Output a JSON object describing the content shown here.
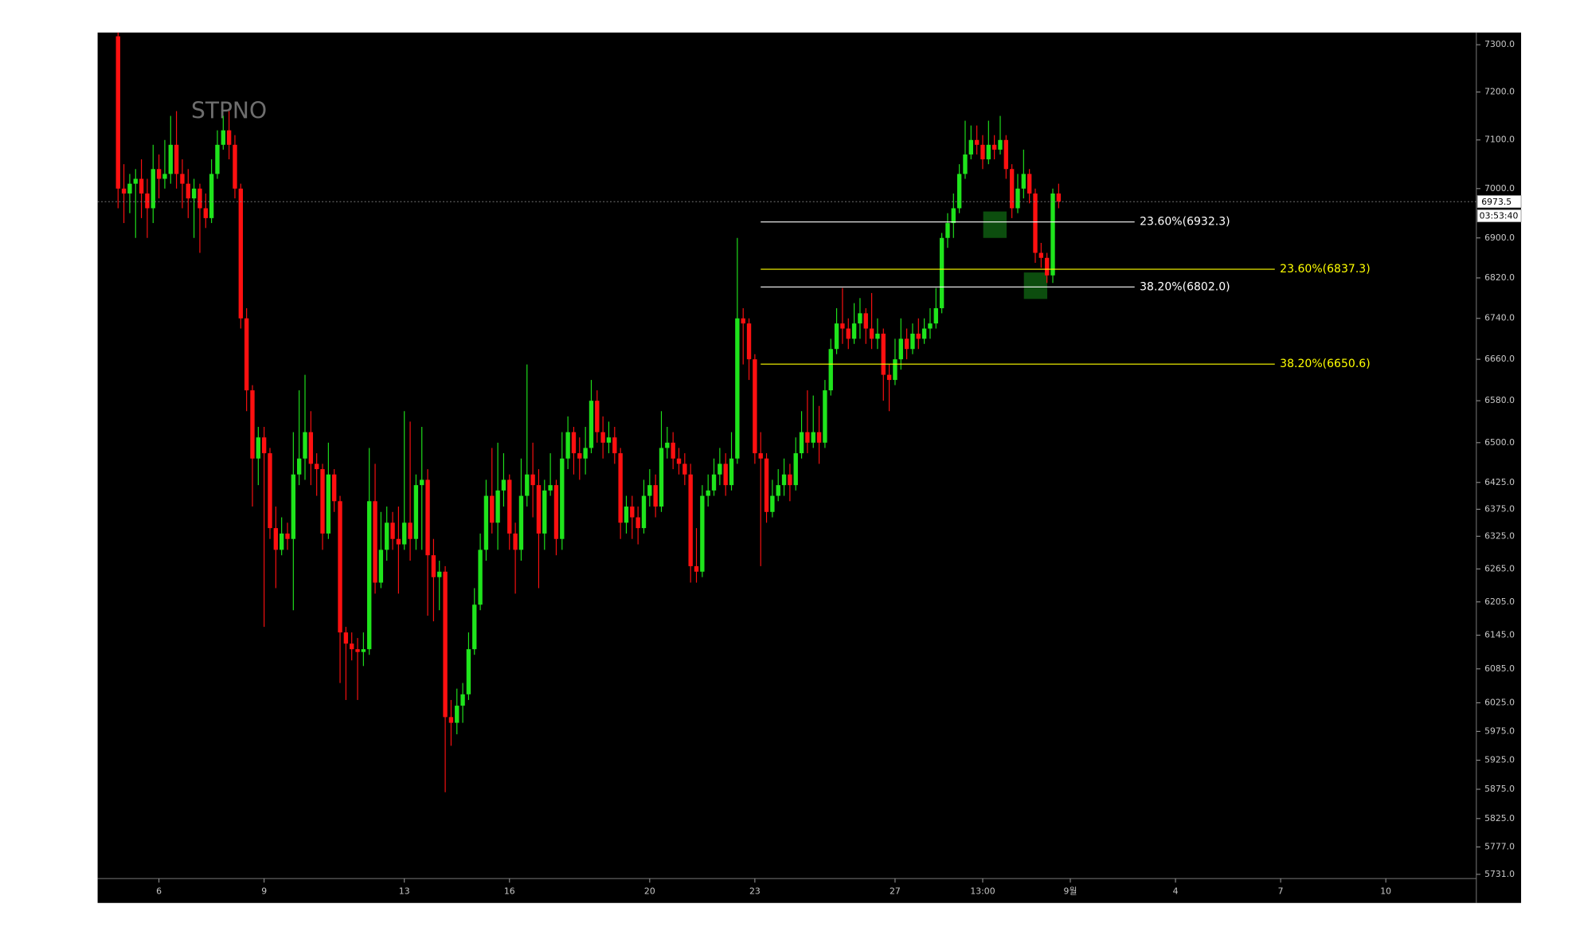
{
  "chart_data": {
    "type": "candlestick",
    "title": "STPNO",
    "log_scale": true,
    "ylim": [
      5724,
      7326
    ],
    "yticks": [
      {
        "value": 7300,
        "label": "7300.0"
      },
      {
        "value": 7200,
        "label": "7200.0"
      },
      {
        "value": 7100,
        "label": "7100.0"
      },
      {
        "value": 7000,
        "label": "7000.0"
      },
      {
        "value": 6900,
        "label": "6900.0"
      },
      {
        "value": 6820,
        "label": "6820.0"
      },
      {
        "value": 6740,
        "label": "6740.0"
      },
      {
        "value": 6660,
        "label": "6660.0"
      },
      {
        "value": 6580,
        "label": "6580.0"
      },
      {
        "value": 6500,
        "label": "6500.0"
      },
      {
        "value": 6425,
        "label": "6425.0"
      },
      {
        "value": 6375,
        "label": "6375.0"
      },
      {
        "value": 6325,
        "label": "6325.0"
      },
      {
        "value": 6265,
        "label": "6265.0"
      },
      {
        "value": 6205,
        "label": "6205.0"
      },
      {
        "value": 6145,
        "label": "6145.0"
      },
      {
        "value": 6085,
        "label": "6085.0"
      },
      {
        "value": 6025,
        "label": "6025.0"
      },
      {
        "value": 5975,
        "label": "5975.0"
      },
      {
        "value": 5925,
        "label": "5925.0"
      },
      {
        "value": 5875,
        "label": "5875.0"
      },
      {
        "value": 5825,
        "label": "5825.0"
      },
      {
        "value": 5777,
        "label": "5777.0"
      },
      {
        "value": 5731,
        "label": "5731.0"
      }
    ],
    "xlim": [
      -3.5,
      232.5
    ],
    "xticks": [
      {
        "value": 7,
        "label": "6"
      },
      {
        "value": 25,
        "label": "9"
      },
      {
        "value": 49,
        "label": "13"
      },
      {
        "value": 67,
        "label": "16"
      },
      {
        "value": 91,
        "label": "20"
      },
      {
        "value": 109,
        "label": "23"
      },
      {
        "value": 133,
        "label": "27"
      },
      {
        "value": 148,
        "label": "13:00"
      },
      {
        "value": 163,
        "label": "9월"
      },
      {
        "value": 181,
        "label": "4"
      },
      {
        "value": 199,
        "label": "7"
      },
      {
        "value": 217,
        "label": "10"
      }
    ],
    "up_color": "#1fe41c",
    "down_color": "#ff1010",
    "open": [
      7318,
      7000,
      6990,
      7010,
      7020,
      6990,
      6960,
      7040,
      7020,
      7030,
      7090,
      7030,
      7010,
      6980,
      7000,
      6960,
      6940,
      7030,
      7090,
      7120,
      7090,
      7000,
      6740,
      6600,
      6470,
      6510,
      6480,
      6340,
      6300,
      6330,
      6320,
      6440,
      6470,
      6520,
      6460,
      6450,
      6330,
      6440,
      6390,
      6150,
      6130,
      6120,
      6115,
      6120,
      6390,
      6240,
      6300,
      6350,
      6320,
      6310,
      6350,
      6320,
      6420,
      6430,
      6290,
      6250,
      6260,
      6000,
      5990,
      6020,
      6040,
      6120,
      6200,
      6300,
      6400,
      6350,
      6410,
      6430,
      6330,
      6300,
      6400,
      6440,
      6420,
      6330,
      6410,
      6420,
      6320,
      6470,
      6520,
      6480,
      6470,
      6490,
      6580,
      6520,
      6500,
      6510,
      6480,
      6350,
      6380,
      6360,
      6340,
      6400,
      6420,
      6380,
      6490,
      6500,
      6470,
      6460,
      6440,
      6270,
      6260,
      6400,
      6410,
      6440,
      6460,
      6420,
      6470,
      6740,
      6730,
      6660,
      6480,
      6470,
      6370,
      6400,
      6420,
      6440,
      6420,
      6480,
      6520,
      6500,
      6520,
      6500,
      6600,
      6680,
      6730,
      6720,
      6700,
      6730,
      6750,
      6720,
      6700,
      6710,
      6630,
      6620,
      6660,
      6700,
      6680,
      6710,
      6700,
      6720,
      6730,
      6760,
      6900,
      6930,
      6960,
      7030,
      7070,
      7100,
      7090,
      7060,
      7090,
      7080,
      7100,
      7040,
      6960,
      7000,
      7030,
      6990,
      6870,
      6860,
      6825,
      6990
    ],
    "high": [
      7330,
      7050,
      7030,
      7040,
      7060,
      7020,
      7090,
      7070,
      7100,
      7150,
      7160,
      7060,
      7040,
      7020,
      7010,
      6990,
      7060,
      7120,
      7150,
      7160,
      7110,
      7010,
      6760,
      6610,
      6530,
      6530,
      6490,
      6380,
      6360,
      6350,
      6520,
      6600,
      6630,
      6560,
      6480,
      6460,
      6500,
      6450,
      6400,
      6160,
      6150,
      6140,
      6150,
      6490,
      6460,
      6370,
      6380,
      6370,
      6380,
      6560,
      6540,
      6440,
      6530,
      6450,
      6320,
      6280,
      6270,
      6030,
      6050,
      6060,
      6150,
      6230,
      6330,
      6430,
      6490,
      6500,
      6480,
      6440,
      6350,
      6470,
      6650,
      6500,
      6450,
      6430,
      6480,
      6430,
      6520,
      6550,
      6530,
      6510,
      6530,
      6620,
      6600,
      6550,
      6540,
      6530,
      6490,
      6400,
      6400,
      6380,
      6430,
      6450,
      6440,
      6560,
      6530,
      6520,
      6490,
      6480,
      6460,
      6340,
      6420,
      6440,
      6470,
      6490,
      6480,
      6520,
      6900,
      6760,
      6740,
      6670,
      6520,
      6480,
      6430,
      6450,
      6470,
      6460,
      6510,
      6560,
      6600,
      6590,
      6570,
      6620,
      6700,
      6760,
      6800,
      6740,
      6770,
      6780,
      6760,
      6790,
      6740,
      6720,
      6650,
      6700,
      6740,
      6720,
      6730,
      6740,
      6740,
      6760,
      6800,
      6910,
      6950,
      6990,
      7050,
      7140,
      7130,
      7130,
      7110,
      7140,
      7110,
      7150,
      7110,
      7050,
      7030,
      7080,
      7040,
      7000,
      6890,
      6870,
      7000,
      7010
    ],
    "low": [
      6960,
      6930,
      6950,
      6900,
      6940,
      6900,
      6930,
      6980,
      7000,
      7010,
      7000,
      6960,
      6940,
      6900,
      6870,
      6920,
      6930,
      7020,
      7080,
      7060,
      6980,
      6720,
      6560,
      6380,
      6420,
      6160,
      6320,
      6230,
      6290,
      6300,
      6190,
      6420,
      6430,
      6420,
      6400,
      6300,
      6320,
      6370,
      6060,
      6030,
      6100,
      6030,
      6090,
      6110,
      6220,
      6230,
      6280,
      6300,
      6220,
      6300,
      6280,
      6300,
      6300,
      6180,
      6170,
      6190,
      5870,
      5950,
      5970,
      5990,
      6030,
      6110,
      6190,
      6280,
      6330,
      6300,
      6380,
      6300,
      6220,
      6280,
      6380,
      6360,
      6230,
      6300,
      6400,
      6290,
      6300,
      6450,
      6440,
      6430,
      6440,
      6480,
      6500,
      6470,
      6480,
      6460,
      6320,
      6330,
      6320,
      6310,
      6330,
      6380,
      6360,
      6370,
      6470,
      6450,
      6440,
      6420,
      6240,
      6240,
      6250,
      6380,
      6400,
      6420,
      6400,
      6410,
      6460,
      6650,
      6620,
      6460,
      6270,
      6350,
      6360,
      6390,
      6400,
      6390,
      6410,
      6470,
      6480,
      6490,
      6460,
      6490,
      6590,
      6670,
      6690,
      6680,
      6690,
      6700,
      6690,
      6680,
      6680,
      6580,
      6560,
      6610,
      6640,
      6660,
      6670,
      6680,
      6690,
      6700,
      6720,
      6750,
      6880,
      6900,
      6950,
      7020,
      7060,
      7070,
      7040,
      7050,
      7060,
      7070,
      7020,
      6940,
      6950,
      6980,
      6970,
      6850,
      6840,
      6810,
      6810,
      6960
    ],
    "close": [
      7000,
      6990,
      7010,
      7020,
      6990,
      6960,
      7040,
      7020,
      7030,
      7090,
      7030,
      7010,
      6980,
      7000,
      6960,
      6940,
      7030,
      7090,
      7120,
      7090,
      7000,
      6740,
      6600,
      6470,
      6510,
      6480,
      6340,
      6300,
      6330,
      6320,
      6440,
      6470,
      6520,
      6460,
      6450,
      6330,
      6440,
      6390,
      6150,
      6130,
      6120,
      6115,
      6120,
      6390,
      6240,
      6300,
      6350,
      6320,
      6310,
      6350,
      6320,
      6420,
      6430,
      6290,
      6250,
      6260,
      6000,
      5990,
      6020,
      6040,
      6120,
      6200,
      6300,
      6400,
      6350,
      6410,
      6430,
      6330,
      6300,
      6400,
      6440,
      6420,
      6330,
      6410,
      6420,
      6320,
      6470,
      6520,
      6480,
      6470,
      6490,
      6580,
      6520,
      6500,
      6510,
      6480,
      6350,
      6380,
      6360,
      6340,
      6400,
      6420,
      6380,
      6490,
      6500,
      6470,
      6460,
      6440,
      6270,
      6260,
      6400,
      6410,
      6440,
      6460,
      6420,
      6470,
      6740,
      6730,
      6660,
      6480,
      6470,
      6370,
      6400,
      6420,
      6440,
      6420,
      6480,
      6520,
      6500,
      6520,
      6500,
      6600,
      6680,
      6730,
      6720,
      6700,
      6730,
      6750,
      6720,
      6700,
      6710,
      6630,
      6620,
      6660,
      6700,
      6680,
      6710,
      6700,
      6720,
      6730,
      6760,
      6900,
      6930,
      6960,
      7030,
      7070,
      7100,
      7090,
      7060,
      7090,
      7080,
      7100,
      7040,
      6960,
      7000,
      7030,
      6990,
      6870,
      6860,
      6825,
      6990,
      6973.5
    ],
    "last_price": 6973.5,
    "countdown": "03:53:40",
    "fib_levels": [
      {
        "label": "23.60%(6932.3)",
        "value": 6932.3,
        "color": "#ffffff",
        "x_range": [
          110,
          174
        ]
      },
      {
        "label": "38.20%(6802.0)",
        "value": 6802.0,
        "color": "#ffffff",
        "x_range": [
          110,
          174
        ]
      },
      {
        "label": "23.60%(6837.3)",
        "value": 6837.3,
        "color": "#ffff00",
        "x_range": [
          110,
          198
        ]
      },
      {
        "label": "38.20%(6650.6)",
        "value": 6650.6,
        "color": "#ffff00",
        "x_range": [
          110,
          198
        ]
      }
    ]
  }
}
